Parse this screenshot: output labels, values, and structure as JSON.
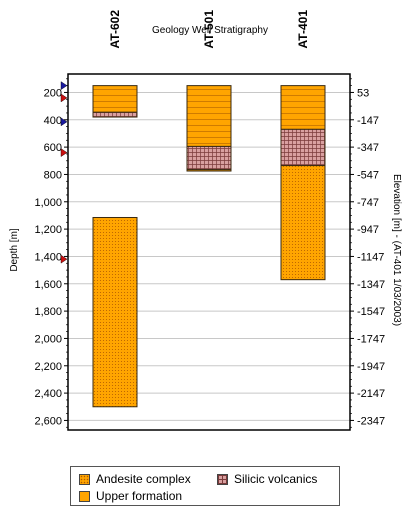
{
  "chart_data": {
    "type": "bar",
    "title": "Geology Well Stratigraphy",
    "ylabel": "Depth [m]",
    "y2label": "Elevation [m] - (AT-401 1/03/2003)",
    "ylim": [
      65,
      2670
    ],
    "y_ticks": [
      200,
      400,
      600,
      800,
      1000,
      1200,
      1400,
      1600,
      1800,
      2000,
      2200,
      2400,
      2600
    ],
    "y_tick_labels": [
      "200",
      "400",
      "600",
      "800",
      "1,000",
      "1,200",
      "1,400",
      "1,600",
      "1,800",
      "2,000",
      "2,200",
      "2,400",
      "2,600"
    ],
    "y2_tick_labels": [
      "53",
      "-147",
      "-347",
      "-547",
      "-747",
      "-947",
      "-1147",
      "-1347",
      "-1547",
      "-1747",
      "-1947",
      "-2147",
      "-2347"
    ],
    "grid": true,
    "legend_position": "bottom",
    "categories": [
      "AT-602",
      "AT-501",
      "AT-401"
    ],
    "series": [
      {
        "name": "Upper formation",
        "color": "#ffa500",
        "pattern": "horizontal-lines",
        "intervals": [
          [
            150,
            345
          ],
          [
            150,
            595
          ],
          [
            150,
            470
          ]
        ]
      },
      {
        "name": "Silicic volcanics",
        "color": "#cc8a8a",
        "pattern": "crosshatch",
        "intervals": [
          [
            345,
            380
          ],
          [
            595,
            765
          ],
          [
            470,
            735
          ]
        ]
      },
      {
        "name": "Andesite complex",
        "color": "#ffa500",
        "pattern": "dots",
        "intervals": [
          [
            1115,
            2500
          ],
          [
            765,
            775
          ],
          [
            735,
            1570
          ]
        ]
      }
    ],
    "depth_markers": [
      {
        "depth": 150,
        "color": "#1a1aa0"
      },
      {
        "depth": 240,
        "color": "#cc1111"
      },
      {
        "depth": 415,
        "color": "#1a1aa0"
      },
      {
        "depth": 640,
        "color": "#cc1111"
      },
      {
        "depth": 1420,
        "color": "#cc1111"
      }
    ]
  },
  "legend": {
    "items": [
      {
        "label": "Andesite complex",
        "key": "andesite"
      },
      {
        "label": "Silicic volcanics",
        "key": "silicic"
      },
      {
        "label": "Upper formation",
        "key": "upper"
      }
    ]
  }
}
